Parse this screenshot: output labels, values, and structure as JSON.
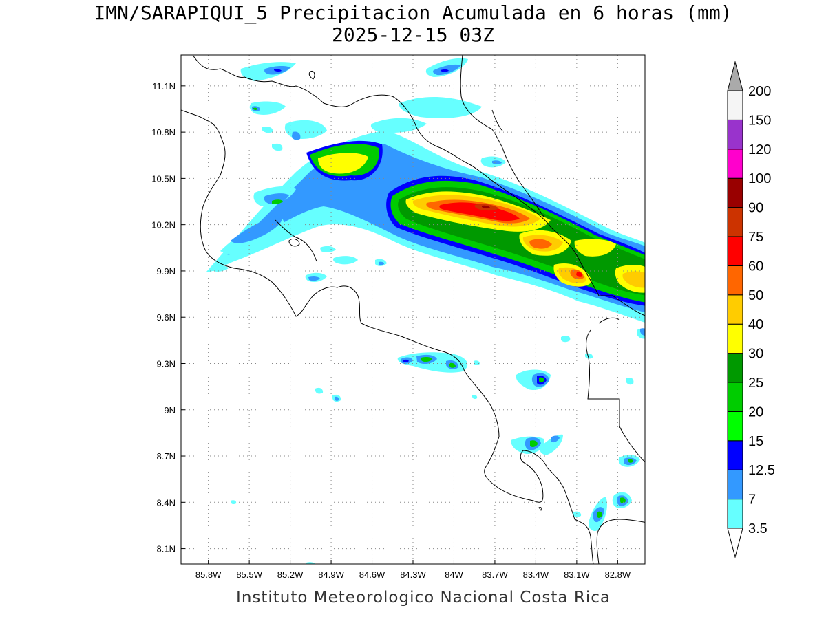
{
  "title_line1": "IMN/SARAPIQUI_5 Precipitacion Acumulada en 6 horas (mm)",
  "title_line2": "2025-12-15 03Z",
  "footer": "Instituto Meteorologico Nacional Costa Rica",
  "map": {
    "lon_range": [
      -86.0,
      -82.6
    ],
    "lat_range": [
      8.0,
      11.3
    ],
    "lon_ticks": [
      "85.8W",
      "85.5W",
      "85.2W",
      "84.9W",
      "84.6W",
      "84.3W",
      "84W",
      "83.7W",
      "83.4W",
      "83.1W",
      "82.8W"
    ],
    "lon_tick_values": [
      -85.8,
      -85.5,
      -85.2,
      -84.9,
      -84.6,
      -84.3,
      -84.0,
      -83.7,
      -83.4,
      -83.1,
      -82.8
    ],
    "lat_ticks": [
      "11.1N",
      "10.8N",
      "10.5N",
      "10.2N",
      "9.9N",
      "9.6N",
      "9.3N",
      "9N",
      "8.7N",
      "8.4N",
      "8.1N"
    ],
    "lat_tick_values": [
      11.1,
      10.8,
      10.5,
      10.2,
      9.9,
      9.6,
      9.3,
      9.0,
      8.7,
      8.4,
      8.1
    ],
    "grid": "dotted"
  },
  "colorbar": {
    "levels": [
      "3.5",
      "7",
      "12.5",
      "15",
      "20",
      "25",
      "30",
      "40",
      "50",
      "60",
      "75",
      "90",
      "100",
      "120",
      "150",
      "200"
    ],
    "colors": [
      "#66ffff",
      "#3399ff",
      "#0000ff",
      "#00ff00",
      "#00cc00",
      "#009900",
      "#ffff00",
      "#ffcc00",
      "#ff6600",
      "#ff0000",
      "#cc3300",
      "#990000",
      "#ff00cc",
      "#9933cc",
      "#f5f5f5"
    ],
    "top_arrow_color": "#aaaaaa",
    "bottom_arrow_color": "#ffffff"
  }
}
